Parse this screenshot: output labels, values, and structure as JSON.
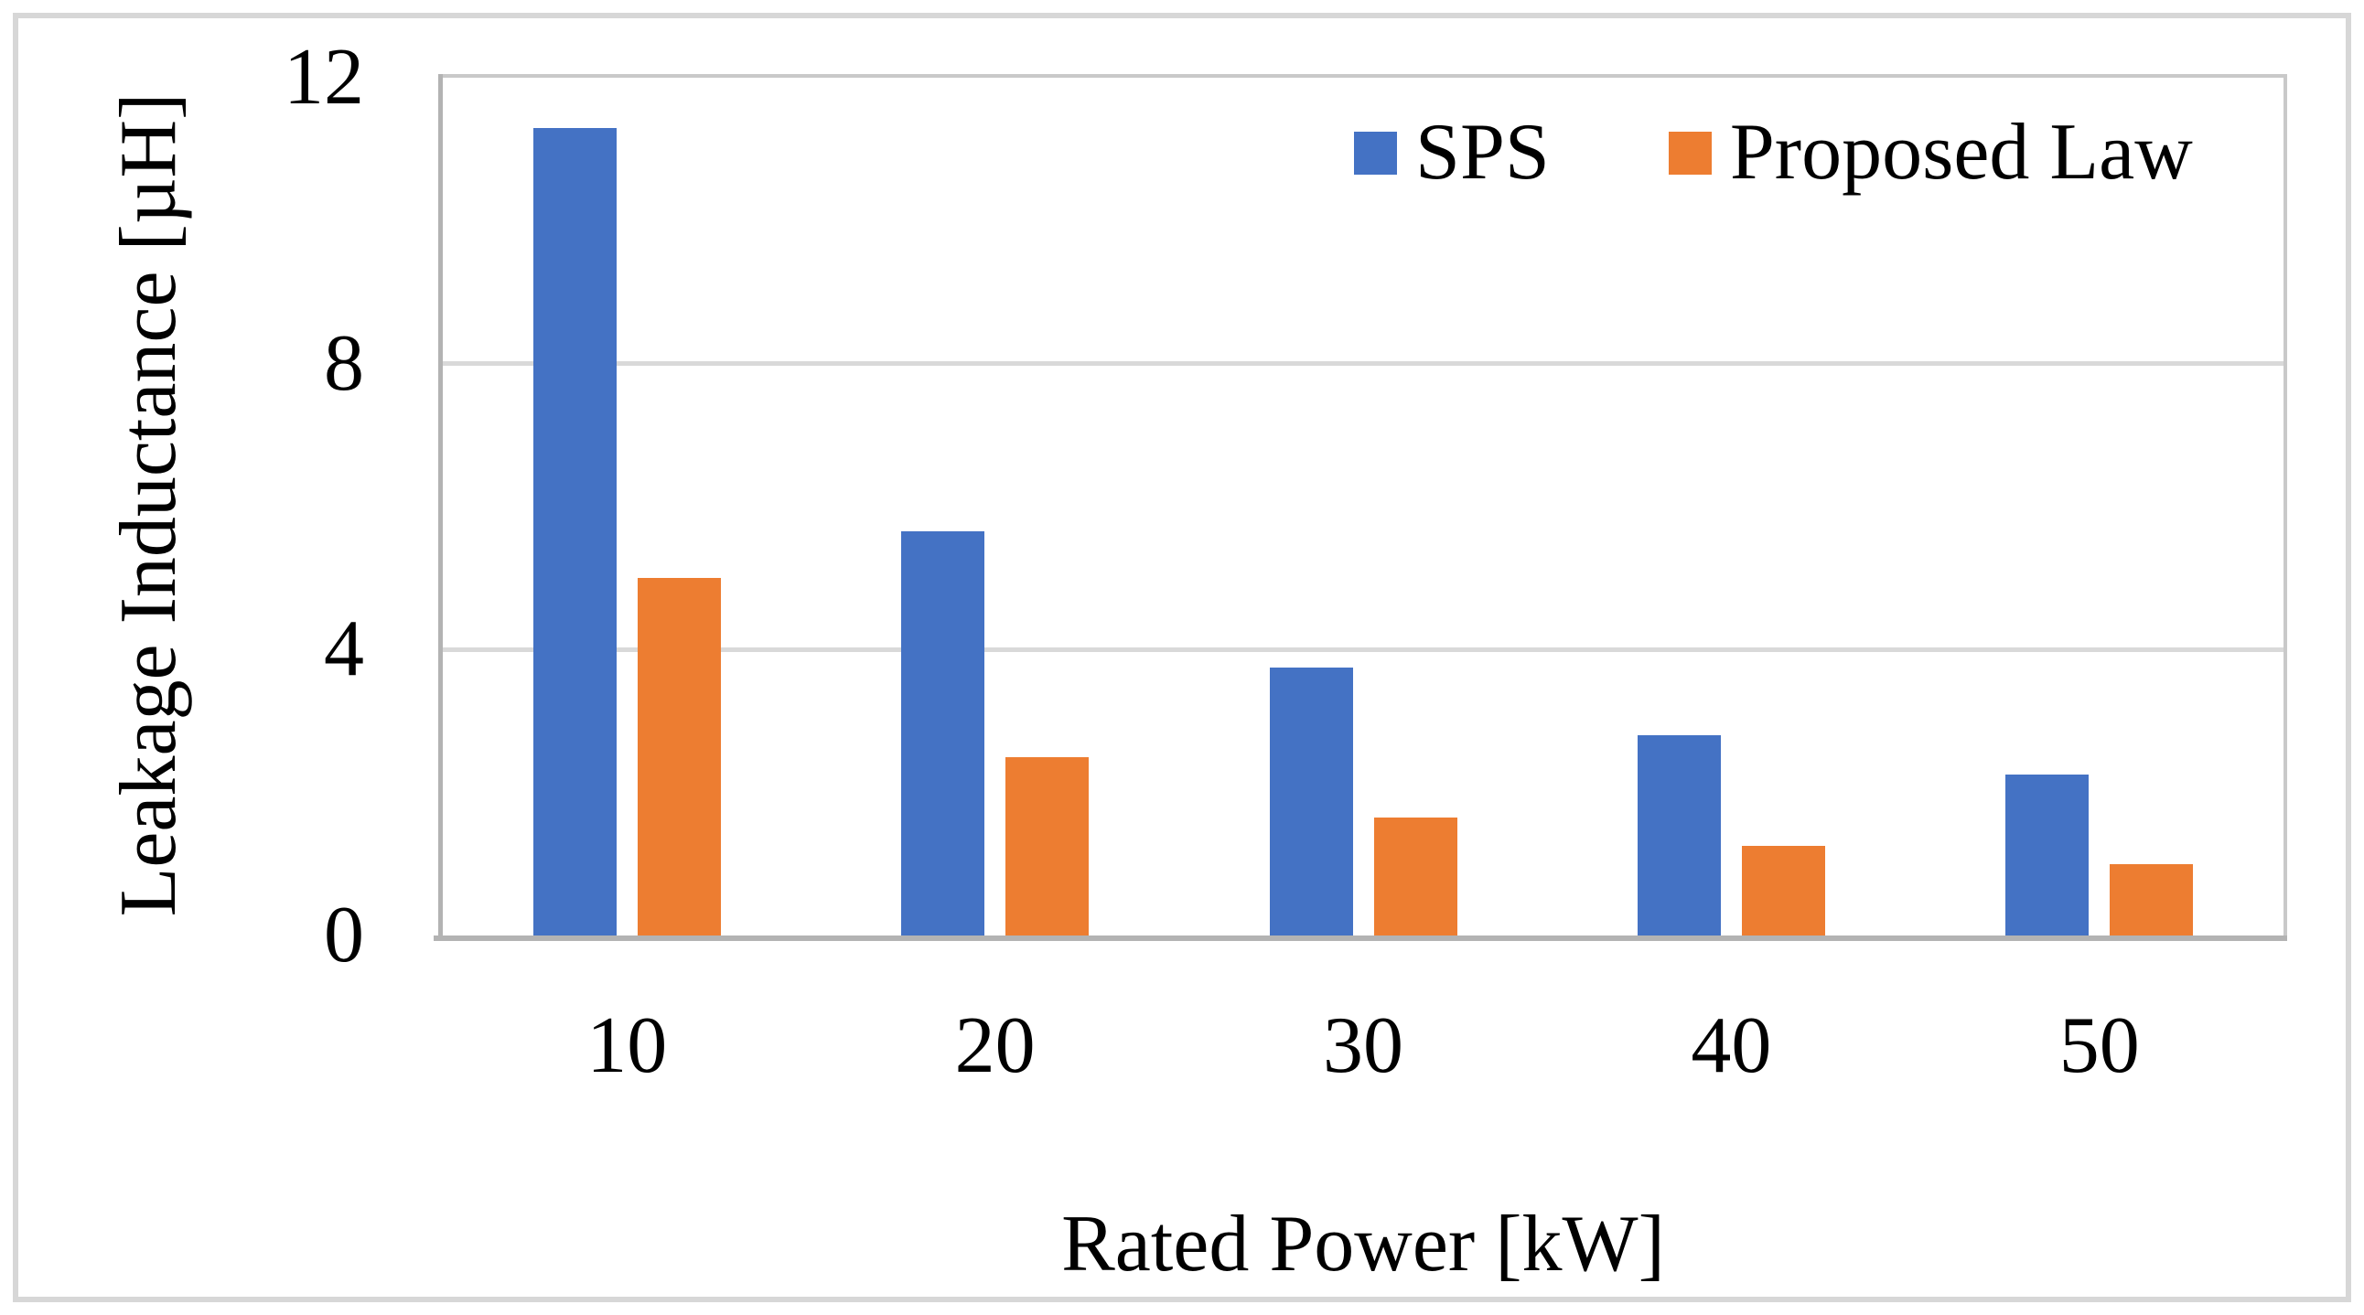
{
  "chart_data": {
    "type": "bar",
    "title": "",
    "categories": [
      "10",
      "20",
      "30",
      "40",
      "50"
    ],
    "series": [
      {
        "name": "SPS",
        "color": "#4472C4",
        "values": [
          11.3,
          5.65,
          3.75,
          2.8,
          2.25
        ]
      },
      {
        "name": "Proposed Law",
        "color": "#ED7D31",
        "values": [
          5.0,
          2.5,
          1.65,
          1.25,
          1.0
        ]
      }
    ],
    "xlabel": "Rated Power [kW]",
    "ylabel": "Leakage Inductance [µH]",
    "ylim": [
      0,
      12
    ],
    "yticks": [
      0,
      4,
      8,
      12
    ],
    "grid": "horizontal-gridlines-at-4-and-8",
    "legend_position": "top-right-inside",
    "gridline_color": "#D9D9D9",
    "axis_line_color": "#B3B3B3",
    "plot_border_color": "#C9C9C9"
  }
}
